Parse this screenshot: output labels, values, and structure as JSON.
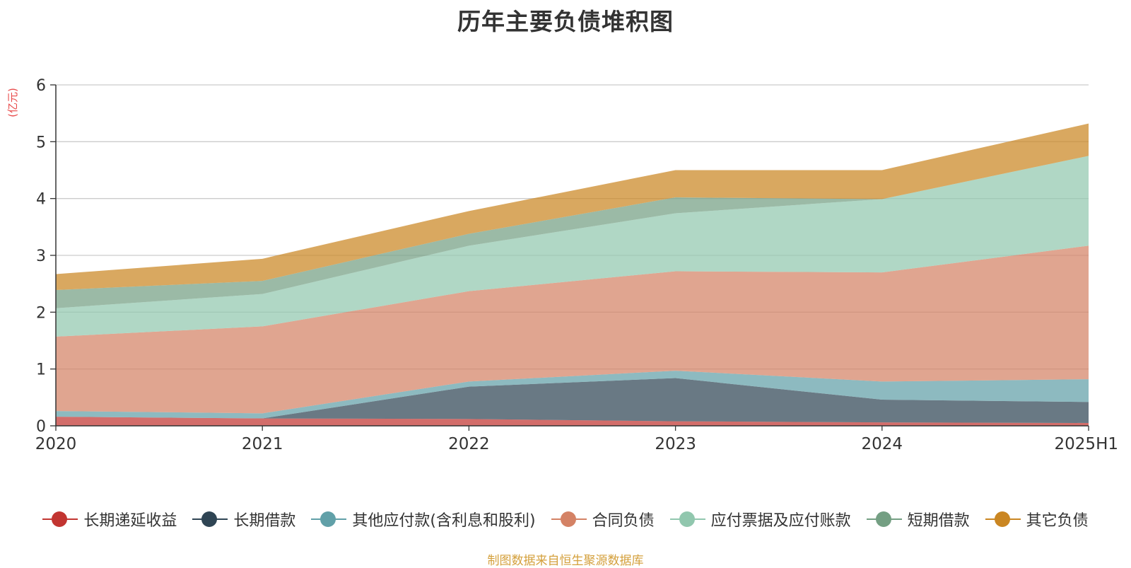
{
  "chart_data": {
    "type": "area",
    "stacked": true,
    "title": "历年主要负债堆积图",
    "ylabel": "(亿元)",
    "xlabel": "",
    "categories": [
      "2020",
      "2021",
      "2022",
      "2023",
      "2024",
      "2025H1"
    ],
    "ylim": [
      0,
      6
    ],
    "yticks": [
      0,
      1,
      2,
      3,
      4,
      5,
      6
    ],
    "grid": true,
    "legend_position": "bottom",
    "series": [
      {
        "name": "长期递延收益",
        "color": "#c23531",
        "values": [
          0.16,
          0.13,
          0.12,
          0.08,
          0.06,
          0.05
        ]
      },
      {
        "name": "长期借款",
        "color": "#2f4554",
        "values": [
          0.0,
          0.0,
          0.57,
          0.76,
          0.4,
          0.37
        ]
      },
      {
        "name": "其他应付款(含利息和股利)",
        "color": "#61a0a8",
        "values": [
          0.1,
          0.09,
          0.09,
          0.13,
          0.32,
          0.4
        ]
      },
      {
        "name": "合同负债",
        "color": "#d48265",
        "values": [
          1.31,
          1.53,
          1.59,
          1.75,
          1.92,
          2.35
        ]
      },
      {
        "name": "应付票据及应付账款",
        "color": "#91c7ae",
        "values": [
          0.5,
          0.57,
          0.8,
          1.02,
          1.29,
          1.58
        ]
      },
      {
        "name": "短期借款",
        "color": "#749f83",
        "values": [
          0.32,
          0.23,
          0.21,
          0.28,
          0.0,
          0.0
        ]
      },
      {
        "name": "其它负债",
        "color": "#ca8622",
        "values": [
          0.28,
          0.39,
          0.4,
          0.48,
          0.51,
          0.57
        ]
      }
    ]
  },
  "source_note": "制图数据来自恒生聚源数据库"
}
